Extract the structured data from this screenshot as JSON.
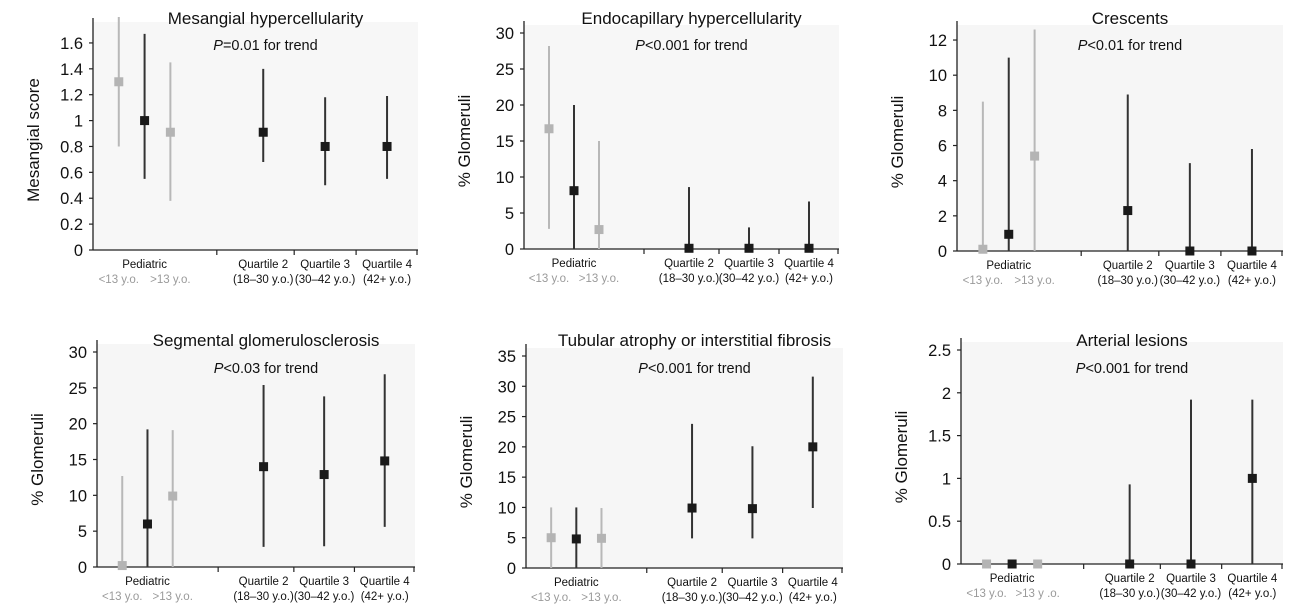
{
  "chart_data": [
    {
      "type": "scatter",
      "title": "Mesangial hypercellularity",
      "subtitle_italic": "P",
      "subtitle_rest": "=0.01 for trend",
      "ylabel": "Mesangial score",
      "ylim": [
        0,
        1.7
      ],
      "yticks": [
        "0",
        "0.2",
        "0.4",
        "0.6",
        "0.8",
        "1",
        "1.2",
        "1.4",
        "1.6"
      ],
      "ytick_values": [
        0,
        0.2,
        0.4,
        0.6,
        0.8,
        1,
        1.2,
        1.4,
        1.6
      ],
      "xlim": [
        0,
        6.3
      ],
      "groups": [
        {
          "top": "Pediatric",
          "bottom": "",
          "x": 1.0
        },
        {
          "top": "Quartile 2",
          "bottom": "(18–30 y.o.)",
          "x": 3.3
        },
        {
          "top": "Quartile 3",
          "bottom": "(30–42 y.o.)",
          "x": 4.5
        },
        {
          "top": "Quartile 4",
          "bottom": "(42+ y.o.)",
          "x": 5.7
        }
      ],
      "subgroups": [
        {
          "label": "<13 y.o.",
          "x": 0.5
        },
        {
          "label": ">13 y.o.",
          "x": 1.5
        }
      ],
      "points": [
        {
          "x": 0.5,
          "y": 1.3,
          "lo": 0.8,
          "hi": 1.8,
          "color": "#b4b4b4"
        },
        {
          "x": 1.0,
          "y": 1.0,
          "lo": 0.55,
          "hi": 1.67,
          "color": "#1a1a1a"
        },
        {
          "x": 1.5,
          "y": 0.91,
          "lo": 0.38,
          "hi": 1.45,
          "color": "#b4b4b4"
        },
        {
          "x": 3.3,
          "y": 0.91,
          "lo": 0.68,
          "hi": 1.4,
          "color": "#1a1a1a"
        },
        {
          "x": 4.5,
          "y": 0.8,
          "lo": 0.5,
          "hi": 1.18,
          "color": "#1a1a1a"
        },
        {
          "x": 5.7,
          "y": 0.8,
          "lo": 0.55,
          "hi": 1.19,
          "color": "#1a1a1a"
        }
      ]
    },
    {
      "type": "scatter",
      "title": "Endocapillary hypercellularity",
      "subtitle_italic": "P",
      "subtitle_rest": "<0.001 for trend",
      "ylabel": "% Glomeruli",
      "ylim": [
        0,
        30
      ],
      "yticks": [
        "0",
        "5",
        "10",
        "15",
        "20",
        "25",
        "30"
      ],
      "ytick_values": [
        0,
        5,
        10,
        15,
        20,
        25,
        30
      ],
      "xlim": [
        0,
        6.3
      ],
      "groups": [
        {
          "top": "Pediatric",
          "bottom": "",
          "x": 1.0
        },
        {
          "top": "Quartile 2",
          "bottom": "(18–30 y.o.)",
          "x": 3.3
        },
        {
          "top": "Quartile 3",
          "bottom": "(30–42 y.o.)",
          "x": 4.5
        },
        {
          "top": "Quartile 4",
          "bottom": "(42+ y.o.)",
          "x": 5.7
        }
      ],
      "subgroups": [
        {
          "label": "<13 y.o.",
          "x": 0.5
        },
        {
          "label": ">13 y.o.",
          "x": 1.5
        }
      ],
      "points": [
        {
          "x": 0.5,
          "y": 16.7,
          "lo": 2.8,
          "hi": 28.2,
          "color": "#b4b4b4"
        },
        {
          "x": 1.0,
          "y": 8.1,
          "lo": 0,
          "hi": 20,
          "color": "#1a1a1a"
        },
        {
          "x": 1.5,
          "y": 2.7,
          "lo": 0,
          "hi": 15,
          "color": "#b4b4b4"
        },
        {
          "x": 3.3,
          "y": 0.1,
          "lo": 0,
          "hi": 8.6,
          "color": "#1a1a1a"
        },
        {
          "x": 4.5,
          "y": 0.1,
          "lo": 0,
          "hi": 3.0,
          "color": "#1a1a1a"
        },
        {
          "x": 5.7,
          "y": 0.1,
          "lo": 0,
          "hi": 6.6,
          "color": "#1a1a1a"
        }
      ]
    },
    {
      "type": "scatter",
      "title": "Crescents",
      "subtitle_italic": "P",
      "subtitle_rest": "<0.01 for trend",
      "ylabel": "% Glomeruli",
      "ylim": [
        0,
        12.4
      ],
      "yticks": [
        "0",
        "2",
        "4",
        "6",
        "8",
        "10",
        "12"
      ],
      "ytick_values": [
        0,
        2,
        4,
        6,
        8,
        10,
        12
      ],
      "xlim": [
        0,
        6.3
      ],
      "groups": [
        {
          "top": "Pediatric",
          "bottom": "",
          "x": 1.0
        },
        {
          "top": "Quartile 2",
          "bottom": "(18–30 y.o.)",
          "x": 3.3
        },
        {
          "top": "Quartile 3",
          "bottom": "(30–42 y.o.)",
          "x": 4.5
        },
        {
          "top": "Quartile 4",
          "bottom": "(42+ y.o.)",
          "x": 5.7
        }
      ],
      "subgroups": [
        {
          "label": "<13 y.o.",
          "x": 0.5
        },
        {
          "label": ">13 y.o.",
          "x": 1.5
        }
      ],
      "points": [
        {
          "x": 0.5,
          "y": 0.1,
          "lo": 0,
          "hi": 8.5,
          "color": "#b4b4b4"
        },
        {
          "x": 1.0,
          "y": 0.95,
          "lo": 0,
          "hi": 11,
          "color": "#1a1a1a"
        },
        {
          "x": 1.5,
          "y": 5.4,
          "lo": 0,
          "hi": 12.6,
          "color": "#b4b4b4"
        },
        {
          "x": 3.3,
          "y": 2.3,
          "lo": 0,
          "hi": 8.9,
          "color": "#1a1a1a"
        },
        {
          "x": 4.5,
          "y": 0.0,
          "lo": 0,
          "hi": 5.0,
          "color": "#1a1a1a"
        },
        {
          "x": 5.7,
          "y": 0.0,
          "lo": 0,
          "hi": 5.8,
          "color": "#1a1a1a"
        }
      ]
    },
    {
      "type": "scatter",
      "title": "Segmental glomerulosclerosis",
      "subtitle_italic": "P",
      "subtitle_rest": "<0.03 for trend",
      "ylabel": "% Glomeruli",
      "ylim": [
        0,
        30
      ],
      "yticks": [
        "0",
        "5",
        "10",
        "15",
        "20",
        "25",
        "30"
      ],
      "ytick_values": [
        0,
        5,
        10,
        15,
        20,
        25,
        30
      ],
      "xlim": [
        0,
        6.3
      ],
      "groups": [
        {
          "top": "Pediatric",
          "bottom": "",
          "x": 1.0
        },
        {
          "top": "Quartile 2",
          "bottom": "(18–30 y.o.)",
          "x": 3.3
        },
        {
          "top": "Quartile 3",
          "bottom": "(30–42 y.o.)",
          "x": 4.5
        },
        {
          "top": "Quartile 4",
          "bottom": "(42+ y.o.)",
          "x": 5.7
        }
      ],
      "subgroups": [
        {
          "label": "<13 y.o.",
          "x": 0.5
        },
        {
          "label": ">13 y.o.",
          "x": 1.5
        }
      ],
      "points": [
        {
          "x": 0.5,
          "y": 0.2,
          "lo": 0,
          "hi": 12.7,
          "color": "#b4b4b4"
        },
        {
          "x": 1.0,
          "y": 6.0,
          "lo": 0,
          "hi": 19.2,
          "color": "#1a1a1a"
        },
        {
          "x": 1.5,
          "y": 9.9,
          "lo": 0,
          "hi": 19.1,
          "color": "#b4b4b4"
        },
        {
          "x": 3.3,
          "y": 14.0,
          "lo": 2.8,
          "hi": 25.4,
          "color": "#1a1a1a"
        },
        {
          "x": 4.5,
          "y": 12.9,
          "lo": 2.9,
          "hi": 23.8,
          "color": "#1a1a1a"
        },
        {
          "x": 5.7,
          "y": 14.8,
          "lo": 5.6,
          "hi": 26.9,
          "color": "#1a1a1a"
        }
      ]
    },
    {
      "type": "scatter",
      "title": "Tubular atrophy or interstitial fibrosis",
      "subtitle_italic": "P",
      "subtitle_rest": "<0.001 for trend",
      "ylabel": "% Glomeruli",
      "ylim": [
        0,
        35
      ],
      "yticks": [
        "0",
        "5",
        "10",
        "15",
        "20",
        "25",
        "30",
        "35"
      ],
      "ytick_values": [
        0,
        5,
        10,
        15,
        20,
        25,
        30,
        35
      ],
      "xlim": [
        0,
        6.3
      ],
      "groups": [
        {
          "top": "Pediatric",
          "bottom": "",
          "x": 1.0
        },
        {
          "top": "Quartile 2",
          "bottom": "(18–30 y.o.)",
          "x": 3.3
        },
        {
          "top": "Quartile 3",
          "bottom": "(30–42 y.o.)",
          "x": 4.5
        },
        {
          "top": "Quartile 4",
          "bottom": "(42+ y.o.)",
          "x": 5.7
        }
      ],
      "subgroups": [
        {
          "label": "<13 y.o.",
          "x": 0.5
        },
        {
          "label": ">13 y.o.",
          "x": 1.5
        }
      ],
      "points": [
        {
          "x": 0.5,
          "y": 5.0,
          "lo": 0,
          "hi": 10,
          "color": "#b4b4b4"
        },
        {
          "x": 1.0,
          "y": 4.8,
          "lo": 0,
          "hi": 10,
          "color": "#1a1a1a"
        },
        {
          "x": 1.5,
          "y": 4.9,
          "lo": 0,
          "hi": 9.9,
          "color": "#b4b4b4"
        },
        {
          "x": 3.3,
          "y": 9.9,
          "lo": 4.9,
          "hi": 23.8,
          "color": "#1a1a1a"
        },
        {
          "x": 4.5,
          "y": 9.8,
          "lo": 4.9,
          "hi": 20.1,
          "color": "#1a1a1a"
        },
        {
          "x": 5.7,
          "y": 20.0,
          "lo": 9.9,
          "hi": 31.6,
          "color": "#1a1a1a"
        }
      ]
    },
    {
      "type": "scatter",
      "title": "Arterial lesions",
      "subtitle_italic": "P",
      "subtitle_rest": "<0.001 for trend",
      "ylabel": "% Glomeruli",
      "ylim": [
        0,
        2.5
      ],
      "yticks": [
        "0",
        "0.5",
        "1",
        "1.5",
        "2",
        "2.5"
      ],
      "ytick_values": [
        0,
        0.5,
        1,
        1.5,
        2,
        2.5
      ],
      "xlim": [
        0,
        6.3
      ],
      "groups": [
        {
          "top": "Pediatric",
          "bottom": "",
          "x": 1.0
        },
        {
          "top": "Quartile 2",
          "bottom": "(18–30 y.o.)",
          "x": 3.3
        },
        {
          "top": "Quartile 3",
          "bottom": "(30–42 y.o.)",
          "x": 4.5
        },
        {
          "top": "Quartile 4",
          "bottom": "(42+ y.o.)",
          "x": 5.7
        }
      ],
      "subgroups": [
        {
          "label": "<13 y.o.",
          "x": 0.5
        },
        {
          "label": ">13 y .o.",
          "x": 1.5
        }
      ],
      "points": [
        {
          "x": 0.5,
          "y": 0.0,
          "lo": 0,
          "hi": 0,
          "color": "#b4b4b4"
        },
        {
          "x": 1.0,
          "y": 0.0,
          "lo": 0,
          "hi": 0,
          "color": "#1a1a1a"
        },
        {
          "x": 1.5,
          "y": 0.0,
          "lo": 0,
          "hi": 0,
          "color": "#b4b4b4"
        },
        {
          "x": 3.3,
          "y": 0.0,
          "lo": 0,
          "hi": 0.93,
          "color": "#1a1a1a"
        },
        {
          "x": 4.5,
          "y": 0.0,
          "lo": 0,
          "hi": 1.92,
          "color": "#1a1a1a"
        },
        {
          "x": 5.7,
          "y": 1.0,
          "lo": 0,
          "hi": 1.92,
          "color": "#1a1a1a"
        }
      ]
    }
  ]
}
